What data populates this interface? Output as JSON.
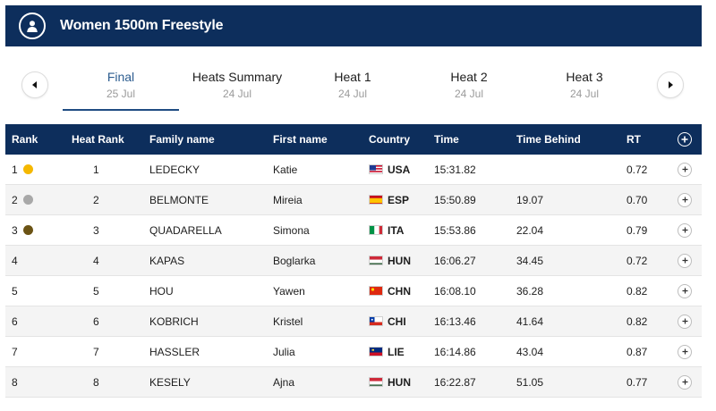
{
  "header": {
    "title": "Women 1500m Freestyle",
    "icon": "user-circle-icon"
  },
  "nav": {
    "prev_icon": "arrow-left-icon",
    "next_icon": "arrow-right-icon"
  },
  "tabs": [
    {
      "label": "Final",
      "date": "25 Jul",
      "active": true
    },
    {
      "label": "Heats Summary",
      "date": "24 Jul",
      "active": false
    },
    {
      "label": "Heat 1",
      "date": "24 Jul",
      "active": false
    },
    {
      "label": "Heat 2",
      "date": "24 Jul",
      "active": false
    },
    {
      "label": "Heat 3",
      "date": "24 Jul",
      "active": false
    }
  ],
  "table": {
    "columns": {
      "rank": "Rank",
      "heat_rank": "Heat Rank",
      "family_name": "Family name",
      "first_name": "First name",
      "country": "Country",
      "time": "Time",
      "time_behind": "Time Behind",
      "rt": "RT"
    },
    "medal_colors": {
      "gold": "#f5b800",
      "silver": "#a8a8a8",
      "bronze": "#6b5314"
    },
    "rows": [
      {
        "rank": "1",
        "medal": "gold",
        "heat_rank": "1",
        "family_name": "LEDECKY",
        "first_name": "Katie",
        "country": "USA",
        "time": "15:31.82",
        "time_behind": "",
        "rt": "0.72"
      },
      {
        "rank": "2",
        "medal": "silver",
        "heat_rank": "2",
        "family_name": "BELMONTE",
        "first_name": "Mireia",
        "country": "ESP",
        "time": "15:50.89",
        "time_behind": "19.07",
        "rt": "0.70"
      },
      {
        "rank": "3",
        "medal": "bronze",
        "heat_rank": "3",
        "family_name": "QUADARELLA",
        "first_name": "Simona",
        "country": "ITA",
        "time": "15:53.86",
        "time_behind": "22.04",
        "rt": "0.79"
      },
      {
        "rank": "4",
        "medal": "",
        "heat_rank": "4",
        "family_name": "KAPAS",
        "first_name": "Boglarka",
        "country": "HUN",
        "time": "16:06.27",
        "time_behind": "34.45",
        "rt": "0.72"
      },
      {
        "rank": "5",
        "medal": "",
        "heat_rank": "5",
        "family_name": "HOU",
        "first_name": "Yawen",
        "country": "CHN",
        "time": "16:08.10",
        "time_behind": "36.28",
        "rt": "0.82"
      },
      {
        "rank": "6",
        "medal": "",
        "heat_rank": "6",
        "family_name": "KOBRICH",
        "first_name": "Kristel",
        "country": "CHI",
        "time": "16:13.46",
        "time_behind": "41.64",
        "rt": "0.82"
      },
      {
        "rank": "7",
        "medal": "",
        "heat_rank": "7",
        "family_name": "HASSLER",
        "first_name": "Julia",
        "country": "LIE",
        "time": "16:14.86",
        "time_behind": "43.04",
        "rt": "0.87"
      },
      {
        "rank": "8",
        "medal": "",
        "heat_rank": "8",
        "family_name": "KESELY",
        "first_name": "Ajna",
        "country": "HUN",
        "time": "16:22.87",
        "time_behind": "51.05",
        "rt": "0.77"
      }
    ]
  },
  "colors": {
    "header_bg": "#0d2e5c",
    "active_tab": "#2c5c8f"
  }
}
